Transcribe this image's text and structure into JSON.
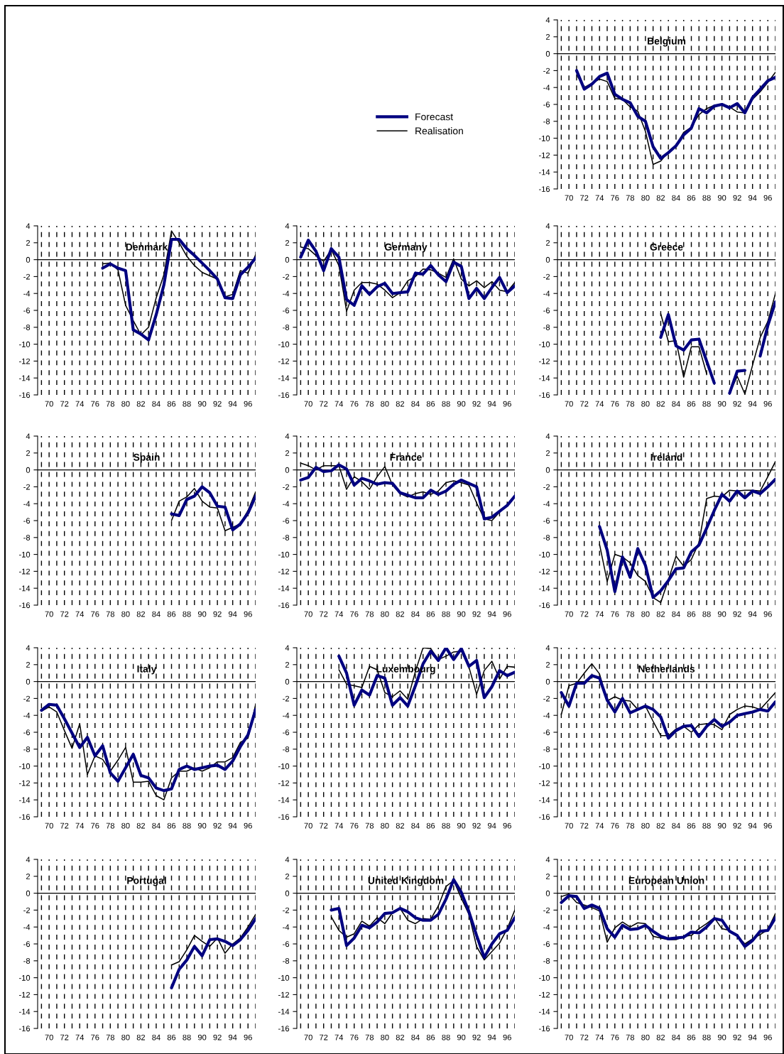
{
  "chart_data": [
    {
      "type": "line",
      "title": "Belgium",
      "legend": "left",
      "grid": "x",
      "xlim": [
        68.5,
        97
      ],
      "ylim": [
        -16,
        4
      ],
      "yticks": [
        -16,
        -14,
        -12,
        -10,
        -8,
        -6,
        -4,
        -2,
        0,
        2,
        4
      ],
      "xticks": [
        {
          "value": 69,
          "label": null
        },
        70,
        {
          "value": 71,
          "label": null
        },
        72,
        {
          "value": 73,
          "label": null
        },
        74,
        {
          "value": 75,
          "label": null
        },
        76,
        {
          "value": 77,
          "label": null
        },
        78,
        {
          "value": 79,
          "label": null
        },
        80,
        {
          "value": 81,
          "label": null
        },
        82,
        {
          "value": 83,
          "label": null
        },
        84,
        {
          "value": 85,
          "label": null
        },
        86,
        {
          "value": 87,
          "label": null
        },
        88,
        {
          "value": 89,
          "label": null
        },
        90,
        {
          "value": 91,
          "label": null
        },
        92,
        {
          "value": 93,
          "label": null
        },
        94,
        {
          "value": 95,
          "label": null
        },
        96,
        {
          "value": 97,
          "label": null
        }
      ],
      "ref_lines": [
        {
          "axis": "y",
          "value": 0,
          "color": "#000000"
        }
      ],
      "x": [
        71,
        72,
        73,
        74,
        75,
        76,
        77,
        78,
        79,
        80,
        81,
        82,
        83,
        84,
        85,
        86,
        87,
        88,
        89,
        90,
        91,
        92,
        93,
        94,
        95,
        96,
        97
      ],
      "series": [
        {
          "name": "Forecast",
          "color": "#000080",
          "values": [
            -2.0,
            -4.2,
            -3.6,
            -2.7,
            -2.3,
            -4.8,
            -5.4,
            -5.8,
            -7.4,
            -8.0,
            -11.0,
            -12.4,
            -11.7,
            -10.9,
            -9.6,
            -8.8,
            -6.5,
            -7.0,
            -6.2,
            -6.0,
            -6.4,
            -5.9,
            -7.0,
            -5.2,
            -4.2,
            -3.2,
            -2.8
          ]
        },
        {
          "name": "Realisation",
          "color": "#000000",
          "values": [
            -2.5,
            -4.0,
            -3.5,
            -3.0,
            -3.3,
            -5.3,
            -5.4,
            -6.3,
            -6.8,
            -9.2,
            -13.1,
            -12.7,
            -11.6,
            -10.8,
            -9.3,
            -8.7,
            -7.2,
            -6.5,
            -6.1,
            -6.0,
            -6.3,
            -6.9,
            -7.0,
            -5.4,
            -4.5,
            -3.4,
            -2.2
          ]
        }
      ]
    },
    {
      "type": "line",
      "title": "Denmark",
      "grid": "x",
      "xlim": [
        68.5,
        97
      ],
      "ylim": [
        -16,
        4
      ],
      "yticks": [
        -16,
        -14,
        -12,
        -10,
        -8,
        -6,
        -4,
        -2,
        0,
        2,
        4
      ],
      "xticks": [
        {
          "value": 69,
          "label": null
        },
        70,
        {
          "value": 71,
          "label": null
        },
        72,
        {
          "value": 73,
          "label": null
        },
        74,
        {
          "value": 75,
          "label": null
        },
        76,
        {
          "value": 77,
          "label": null
        },
        78,
        {
          "value": 79,
          "label": null
        },
        80,
        {
          "value": 81,
          "label": null
        },
        82,
        {
          "value": 83,
          "label": null
        },
        84,
        {
          "value": 85,
          "label": null
        },
        86,
        {
          "value": 87,
          "label": null
        },
        88,
        {
          "value": 89,
          "label": null
        },
        90,
        {
          "value": 91,
          "label": null
        },
        92,
        {
          "value": 93,
          "label": null
        },
        94,
        {
          "value": 95,
          "label": null
        },
        96,
        {
          "value": 97,
          "label": null
        }
      ],
      "ref_lines": [
        {
          "axis": "y",
          "value": 0,
          "color": "#000000"
        }
      ],
      "x": [
        77,
        78,
        79,
        80,
        81,
        82,
        83,
        84,
        85,
        86,
        87,
        88,
        89,
        90,
        91,
        92,
        93,
        94,
        95,
        96,
        97
      ],
      "series": [
        {
          "color": "#000080",
          "values": [
            -1.0,
            -0.5,
            -1.0,
            -1.3,
            -8.3,
            -8.8,
            -9.5,
            -6.5,
            -3.0,
            2.4,
            2.4,
            1.3,
            0.5,
            -0.4,
            -1.3,
            -2.3,
            -4.5,
            -4.6,
            -1.8,
            -0.9,
            0.2
          ]
        },
        {
          "color": "#000000",
          "values": [
            -0.5,
            -0.4,
            -1.2,
            -5.4,
            -7.2,
            -8.9,
            -8.0,
            -4.5,
            -1.8,
            3.4,
            2.0,
            0.4,
            -0.7,
            -1.5,
            -1.9,
            -2.3,
            -4.4,
            -4.1,
            -1.3,
            -1.6,
            0.6
          ]
        }
      ]
    },
    {
      "type": "line",
      "title": "Germany",
      "grid": "x",
      "xlim": [
        68.5,
        97
      ],
      "ylim": [
        -16,
        4
      ],
      "yticks": [
        -16,
        -14,
        -12,
        -10,
        -8,
        -6,
        -4,
        -2,
        0,
        2,
        4
      ],
      "xticks": [
        {
          "value": 69,
          "label": null
        },
        70,
        {
          "value": 71,
          "label": null
        },
        72,
        {
          "value": 73,
          "label": null
        },
        74,
        {
          "value": 75,
          "label": null
        },
        76,
        {
          "value": 77,
          "label": null
        },
        78,
        {
          "value": 79,
          "label": null
        },
        80,
        {
          "value": 81,
          "label": null
        },
        82,
        {
          "value": 83,
          "label": null
        },
        84,
        {
          "value": 85,
          "label": null
        },
        86,
        {
          "value": 87,
          "label": null
        },
        88,
        {
          "value": 89,
          "label": null
        },
        90,
        {
          "value": 91,
          "label": null
        },
        92,
        {
          "value": 93,
          "label": null
        },
        94,
        {
          "value": 95,
          "label": null
        },
        96,
        {
          "value": 97,
          "label": null
        }
      ],
      "ref_lines": [
        {
          "axis": "y",
          "value": 0,
          "color": "#000000"
        }
      ],
      "x": [
        69,
        70,
        71,
        72,
        73,
        74,
        75,
        76,
        77,
        78,
        79,
        80,
        81,
        82,
        83,
        84,
        85,
        86,
        87,
        88,
        89,
        90,
        91,
        92,
        93,
        94,
        95,
        96,
        97
      ],
      "series": [
        {
          "color": "#000080",
          "values": [
            0.3,
            2.3,
            1.0,
            -1.3,
            1.3,
            0.3,
            -4.7,
            -5.4,
            -3.1,
            -4.1,
            -3.2,
            -2.8,
            -4.0,
            -3.9,
            -3.8,
            -1.6,
            -1.7,
            -0.7,
            -1.8,
            -2.6,
            -0.3,
            -0.8,
            -4.6,
            -3.4,
            -4.6,
            -3.3,
            -2.1,
            -3.9,
            -3.1
          ]
        },
        {
          "color": "#000000",
          "values": [
            1.5,
            1.3,
            0.5,
            -0.2,
            1.2,
            -0.7,
            -6.1,
            -3.6,
            -2.7,
            -2.7,
            -2.9,
            -3.6,
            -4.5,
            -3.9,
            -2.5,
            -2.0,
            -1.1,
            -1.2,
            -1.6,
            -2.1,
            0.1,
            -2.3,
            -3.1,
            -2.5,
            -3.3,
            -2.6,
            -3.6,
            -3.8,
            -2.7
          ]
        }
      ]
    },
    {
      "type": "line",
      "title": "Greece",
      "grid": "x",
      "xlim": [
        68.5,
        97
      ],
      "ylim": [
        -16,
        4
      ],
      "yticks": [
        -16,
        -14,
        -12,
        -10,
        -8,
        -6,
        -4,
        -2,
        0,
        2,
        4
      ],
      "xticks": [
        {
          "value": 69,
          "label": null
        },
        70,
        {
          "value": 71,
          "label": null
        },
        72,
        {
          "value": 73,
          "label": null
        },
        74,
        {
          "value": 75,
          "label": null
        },
        76,
        {
          "value": 77,
          "label": null
        },
        78,
        {
          "value": 79,
          "label": null
        },
        80,
        {
          "value": 81,
          "label": null
        },
        82,
        {
          "value": 83,
          "label": null
        },
        84,
        {
          "value": 85,
          "label": null
        },
        86,
        {
          "value": 87,
          "label": null
        },
        88,
        {
          "value": 89,
          "label": null
        },
        90,
        {
          "value": 91,
          "label": null
        },
        92,
        {
          "value": 93,
          "label": null
        },
        94,
        {
          "value": 95,
          "label": null
        },
        96,
        {
          "value": 97,
          "label": null
        }
      ],
      "ref_lines": [
        {
          "axis": "y",
          "value": 0,
          "color": "#000000"
        }
      ],
      "x": [
        82,
        83,
        84,
        85,
        86,
        87,
        88,
        89,
        90,
        91,
        92,
        93,
        94,
        95,
        96,
        97
      ],
      "series": [
        {
          "color": "#000080",
          "values": [
            -9.2,
            -6.5,
            -10.2,
            -10.7,
            -9.5,
            -9.4,
            -12.0,
            -14.6,
            null,
            -15.8,
            -13.2,
            -13.1,
            null,
            -11.4,
            -7.8,
            -5.0
          ]
        },
        {
          "color": "#000000",
          "values": [
            -6.4,
            -9.7,
            -9.6,
            -13.9,
            -10.3,
            -10.3,
            -13.5,
            null,
            null,
            -15.8,
            -13.8,
            -15.9,
            -12.5,
            -9.2,
            -7.3,
            -4.0
          ]
        }
      ]
    },
    {
      "type": "line",
      "title": "Spain",
      "grid": "x",
      "xlim": [
        68.5,
        97
      ],
      "ylim": [
        -16,
        4
      ],
      "yticks": [
        -16,
        -14,
        -12,
        -10,
        -8,
        -6,
        -4,
        -2,
        0,
        2,
        4
      ],
      "xticks": [
        {
          "value": 69,
          "label": null
        },
        70,
        {
          "value": 71,
          "label": null
        },
        72,
        {
          "value": 73,
          "label": null
        },
        74,
        {
          "value": 75,
          "label": null
        },
        76,
        {
          "value": 77,
          "label": null
        },
        78,
        {
          "value": 79,
          "label": null
        },
        80,
        {
          "value": 81,
          "label": null
        },
        82,
        {
          "value": 83,
          "label": null
        },
        84,
        {
          "value": 85,
          "label": null
        },
        86,
        {
          "value": 87,
          "label": null
        },
        88,
        {
          "value": 89,
          "label": null
        },
        90,
        {
          "value": 91,
          "label": null
        },
        92,
        {
          "value": 93,
          "label": null
        },
        94,
        {
          "value": 95,
          "label": null
        },
        96,
        {
          "value": 97,
          "label": null
        }
      ],
      "ref_lines": [
        {
          "axis": "y",
          "value": 0,
          "color": "#000000"
        }
      ],
      "x": [
        86,
        87,
        88,
        89,
        90,
        91,
        92,
        93,
        94,
        95,
        96,
        97
      ],
      "series": [
        {
          "color": "#000080",
          "values": [
            -5.2,
            -5.4,
            -3.5,
            -3.1,
            -2.0,
            -2.7,
            -4.3,
            -4.4,
            -7.1,
            -6.4,
            -5.1,
            -3.1
          ]
        },
        {
          "color": "#000000",
          "values": [
            -6.0,
            -3.7,
            -3.2,
            -2.2,
            -3.7,
            -4.4,
            -4.5,
            -7.2,
            -6.8,
            -6.4,
            -4.8,
            -2.6
          ]
        }
      ]
    },
    {
      "type": "line",
      "title": "France",
      "grid": "x",
      "xlim": [
        68.5,
        97
      ],
      "ylim": [
        -16,
        4
      ],
      "yticks": [
        -16,
        -14,
        -12,
        -10,
        -8,
        -6,
        -4,
        -2,
        0,
        2,
        4
      ],
      "xticks": [
        {
          "value": 69,
          "label": null
        },
        70,
        {
          "value": 71,
          "label": null
        },
        72,
        {
          "value": 73,
          "label": null
        },
        74,
        {
          "value": 75,
          "label": null
        },
        76,
        {
          "value": 77,
          "label": null
        },
        78,
        {
          "value": 79,
          "label": null
        },
        80,
        {
          "value": 81,
          "label": null
        },
        82,
        {
          "value": 83,
          "label": null
        },
        84,
        {
          "value": 85,
          "label": null
        },
        86,
        {
          "value": 87,
          "label": null
        },
        88,
        {
          "value": 89,
          "label": null
        },
        90,
        {
          "value": 91,
          "label": null
        },
        92,
        {
          "value": 93,
          "label": null
        },
        94,
        {
          "value": 95,
          "label": null
        },
        96,
        {
          "value": 97,
          "label": null
        }
      ],
      "ref_lines": [
        {
          "axis": "y",
          "value": 0,
          "color": "#000000"
        }
      ],
      "x": [
        69,
        70,
        71,
        72,
        73,
        74,
        75,
        76,
        77,
        78,
        79,
        80,
        81,
        82,
        83,
        84,
        85,
        86,
        87,
        88,
        89,
        90,
        91,
        92,
        93,
        94,
        95,
        96,
        97
      ],
      "series": [
        {
          "color": "#000080",
          "values": [
            -1.2,
            -0.9,
            0.3,
            -0.2,
            -0.1,
            0.6,
            0.1,
            -1.8,
            -1.0,
            -1.3,
            -1.7,
            -1.5,
            -1.6,
            -2.7,
            -3.0,
            -3.3,
            -3.3,
            -2.4,
            -2.9,
            -2.5,
            -1.7,
            -1.2,
            -1.6,
            -2.0,
            -5.8,
            -5.6,
            -4.9,
            -4.2,
            -3.1
          ]
        },
        {
          "color": "#000000",
          "values": [
            0.8,
            0.5,
            0.0,
            0.5,
            0.5,
            0.5,
            -2.3,
            -0.8,
            -1.4,
            -2.3,
            -0.8,
            0.4,
            -1.8,
            -2.8,
            -3.2,
            -2.8,
            -2.6,
            -2.9,
            -2.5,
            -1.5,
            -1.3,
            -1.5,
            -1.8,
            -3.9,
            -5.8,
            -6.0,
            -5.0,
            -4.1,
            -3.0
          ]
        }
      ]
    },
    {
      "type": "line",
      "title": "Ireland",
      "grid": "x",
      "xlim": [
        68.5,
        97
      ],
      "ylim": [
        -16,
        4
      ],
      "yticks": [
        -16,
        -14,
        -12,
        -10,
        -8,
        -6,
        -4,
        -2,
        0,
        2,
        4
      ],
      "xticks": [
        {
          "value": 69,
          "label": null
        },
        70,
        {
          "value": 71,
          "label": null
        },
        72,
        {
          "value": 73,
          "label": null
        },
        74,
        {
          "value": 75,
          "label": null
        },
        76,
        {
          "value": 77,
          "label": null
        },
        78,
        {
          "value": 79,
          "label": null
        },
        80,
        {
          "value": 81,
          "label": null
        },
        82,
        {
          "value": 83,
          "label": null
        },
        84,
        {
          "value": 85,
          "label": null
        },
        86,
        {
          "value": 87,
          "label": null
        },
        88,
        {
          "value": 89,
          "label": null
        },
        90,
        {
          "value": 91,
          "label": null
        },
        92,
        {
          "value": 93,
          "label": null
        },
        94,
        {
          "value": 95,
          "label": null
        },
        96,
        {
          "value": 97,
          "label": null
        }
      ],
      "ref_lines": [
        {
          "axis": "y",
          "value": 0,
          "color": "#000000"
        }
      ],
      "x": [
        74,
        75,
        76,
        77,
        78,
        79,
        80,
        81,
        82,
        83,
        84,
        85,
        86,
        87,
        88,
        89,
        90,
        91,
        92,
        93,
        94,
        95,
        96,
        97
      ],
      "series": [
        {
          "color": "#000080",
          "values": [
            -6.7,
            -9.5,
            -14.4,
            -10.3,
            -12.7,
            -9.3,
            -11.3,
            -15.1,
            -14.3,
            -13.1,
            -11.7,
            -11.6,
            -9.7,
            -8.9,
            -6.9,
            -4.8,
            -2.9,
            -3.7,
            -2.5,
            -3.3,
            -2.5,
            -2.8,
            -2.0,
            -1.1
          ]
        },
        {
          "color": "#000000",
          "values": [
            -8.8,
            -13.2,
            -10.0,
            -10.3,
            -11.0,
            -12.5,
            -13.2,
            -15.1,
            -15.7,
            -13.0,
            -10.2,
            -11.4,
            -10.6,
            -8.6,
            -3.4,
            -3.1,
            -3.2,
            -2.4,
            -2.5,
            -2.4,
            -2.4,
            -2.5,
            -0.8,
            1.0
          ]
        }
      ]
    },
    {
      "type": "line",
      "title": "Italy",
      "grid": "x",
      "xlim": [
        68.5,
        97
      ],
      "ylim": [
        -16,
        4
      ],
      "yticks": [
        -16,
        -14,
        -12,
        -10,
        -8,
        -6,
        -4,
        -2,
        0,
        2,
        4
      ],
      "xticks": [
        {
          "value": 69,
          "label": null
        },
        70,
        {
          "value": 71,
          "label": null
        },
        72,
        {
          "value": 73,
          "label": null
        },
        74,
        {
          "value": 75,
          "label": null
        },
        76,
        {
          "value": 77,
          "label": null
        },
        78,
        {
          "value": 79,
          "label": null
        },
        80,
        {
          "value": 81,
          "label": null
        },
        82,
        {
          "value": 83,
          "label": null
        },
        84,
        {
          "value": 85,
          "label": null
        },
        86,
        {
          "value": 87,
          "label": null
        },
        88,
        {
          "value": 89,
          "label": null
        },
        90,
        {
          "value": 91,
          "label": null
        },
        92,
        {
          "value": 93,
          "label": null
        },
        94,
        {
          "value": 95,
          "label": null
        },
        96,
        {
          "value": 97,
          "label": null
        }
      ],
      "ref_lines": [
        {
          "axis": "y",
          "value": 0,
          "color": "#000000"
        }
      ],
      "x": [
        69,
        70,
        71,
        72,
        73,
        74,
        75,
        76,
        77,
        78,
        79,
        80,
        81,
        82,
        83,
        84,
        85,
        86,
        87,
        88,
        89,
        90,
        91,
        92,
        93,
        94,
        95,
        96,
        97
      ],
      "series": [
        {
          "color": "#000080",
          "values": [
            -3.4,
            -2.7,
            -2.8,
            -4.4,
            -6.1,
            -7.8,
            -6.6,
            -8.8,
            -7.6,
            -10.8,
            -11.8,
            -10.2,
            -8.6,
            -11.1,
            -11.4,
            -12.6,
            -12.9,
            -12.7,
            -10.4,
            -10.0,
            -10.4,
            -10.2,
            -10.0,
            -9.9,
            -10.4,
            -9.4,
            -7.7,
            -6.3,
            -3.3
          ]
        },
        {
          "color": "#000000",
          "values": [
            -3.5,
            -3.0,
            -3.6,
            -5.8,
            -7.9,
            -5.0,
            -11.0,
            -8.8,
            -9.2,
            -10.6,
            -9.3,
            -7.8,
            -11.9,
            -11.9,
            -11.8,
            -13.5,
            -14.0,
            -11.4,
            -10.6,
            -10.6,
            -10.2,
            -10.6,
            -10.2,
            -9.5,
            -9.5,
            -9.0,
            -7.2,
            -6.7,
            -2.7
          ]
        }
      ]
    },
    {
      "type": "line",
      "title": "Luxembourg",
      "grid": "x",
      "xlim": [
        68.5,
        97
      ],
      "ylim": [
        -16,
        4
      ],
      "yticks": [
        -16,
        -14,
        -12,
        -10,
        -8,
        -6,
        -4,
        -2,
        0,
        2,
        4
      ],
      "xticks": [
        {
          "value": 69,
          "label": null
        },
        70,
        {
          "value": 71,
          "label": null
        },
        72,
        {
          "value": 73,
          "label": null
        },
        74,
        {
          "value": 75,
          "label": null
        },
        76,
        {
          "value": 77,
          "label": null
        },
        78,
        {
          "value": 79,
          "label": null
        },
        80,
        {
          "value": 81,
          "label": null
        },
        82,
        {
          "value": 83,
          "label": null
        },
        84,
        {
          "value": 85,
          "label": null
        },
        86,
        {
          "value": 87,
          "label": null
        },
        88,
        {
          "value": 89,
          "label": null
        },
        90,
        {
          "value": 91,
          "label": null
        },
        92,
        {
          "value": 93,
          "label": null
        },
        94,
        {
          "value": 95,
          "label": null
        },
        96,
        {
          "value": 97,
          "label": null
        }
      ],
      "ref_lines": [
        {
          "axis": "y",
          "value": 0,
          "color": "#000000"
        }
      ],
      "x": [
        74,
        75,
        76,
        77,
        78,
        79,
        80,
        81,
        82,
        83,
        84,
        85,
        86,
        87,
        88,
        89,
        90,
        91,
        92,
        93,
        94,
        95,
        96,
        97
      ],
      "series": [
        {
          "color": "#000080",
          "values": [
            3.0,
            1.0,
            -2.8,
            -1.0,
            -1.6,
            0.7,
            0.4,
            -2.8,
            -1.9,
            -2.9,
            -0.5,
            2.1,
            3.6,
            2.5,
            4.0,
            2.6,
            3.9,
            1.8,
            2.5,
            -1.9,
            -0.6,
            1.3,
            0.7,
            1.1
          ]
        },
        {
          "color": "#000000",
          "values": [
            1.4,
            -0.3,
            -0.5,
            -0.7,
            1.8,
            1.4,
            -1.3,
            -1.8,
            -1.1,
            -2.1,
            1.2,
            4.0,
            3.9,
            2.6,
            3.0,
            3.5,
            3.6,
            1.7,
            -1.5,
            1.3,
            2.4,
            0.3,
            1.8,
            1.7
          ]
        }
      ]
    },
    {
      "type": "line",
      "title": "Netherlands",
      "grid": "x",
      "xlim": [
        68.5,
        97
      ],
      "ylim": [
        -16,
        4
      ],
      "yticks": [
        -16,
        -14,
        -12,
        -10,
        -8,
        -6,
        -4,
        -2,
        0,
        2,
        4
      ],
      "xticks": [
        {
          "value": 69,
          "label": null
        },
        70,
        {
          "value": 71,
          "label": null
        },
        72,
        {
          "value": 73,
          "label": null
        },
        74,
        {
          "value": 75,
          "label": null
        },
        76,
        {
          "value": 77,
          "label": null
        },
        78,
        {
          "value": 79,
          "label": null
        },
        80,
        {
          "value": 81,
          "label": null
        },
        82,
        {
          "value": 83,
          "label": null
        },
        84,
        {
          "value": 85,
          "label": null
        },
        86,
        {
          "value": 87,
          "label": null
        },
        88,
        {
          "value": 89,
          "label": null
        },
        90,
        {
          "value": 91,
          "label": null
        },
        92,
        {
          "value": 93,
          "label": null
        },
        94,
        {
          "value": 95,
          "label": null
        },
        96,
        {
          "value": 97,
          "label": null
        }
      ],
      "ref_lines": [
        {
          "axis": "y",
          "value": 0,
          "color": "#000000"
        }
      ],
      "x": [
        69,
        70,
        71,
        72,
        73,
        74,
        75,
        76,
        77,
        78,
        79,
        80,
        81,
        82,
        83,
        84,
        85,
        86,
        87,
        88,
        89,
        90,
        91,
        92,
        93,
        94,
        95,
        96,
        97
      ],
      "series": [
        {
          "color": "#000080",
          "values": [
            -1.3,
            -2.9,
            -0.2,
            -0.2,
            0.7,
            0.4,
            -2.2,
            -3.6,
            -2.0,
            -3.7,
            -3.3,
            -2.9,
            -3.3,
            -4.2,
            -6.7,
            -5.8,
            -5.3,
            -5.2,
            -6.5,
            -5.3,
            -4.5,
            -5.3,
            -4.8,
            -4.0,
            -3.8,
            -3.6,
            -3.3,
            -3.5,
            -2.4
          ]
        },
        {
          "color": "#000000",
          "values": [
            -3.9,
            -0.5,
            -0.2,
            1.0,
            2.1,
            0.9,
            -2.3,
            -1.8,
            -2.2,
            -2.3,
            -3.3,
            -2.9,
            -4.7,
            -6.4,
            -6.4,
            -5.6,
            -5.3,
            -6.0,
            -5.1,
            -5.0,
            -5.1,
            -5.7,
            -3.9,
            -3.3,
            -2.9,
            -3.0,
            -3.3,
            -2.3,
            -1.3
          ]
        }
      ]
    },
    {
      "type": "line",
      "title": "Portugal",
      "grid": "x",
      "xlim": [
        68.5,
        97
      ],
      "ylim": [
        -16,
        4
      ],
      "yticks": [
        -16,
        -14,
        -12,
        -10,
        -8,
        -6,
        -4,
        -2,
        0,
        2,
        4
      ],
      "xticks": [
        {
          "value": 69,
          "label": null
        },
        70,
        {
          "value": 71,
          "label": null
        },
        72,
        {
          "value": 73,
          "label": null
        },
        74,
        {
          "value": 75,
          "label": null
        },
        76,
        {
          "value": 77,
          "label": null
        },
        78,
        {
          "value": 79,
          "label": null
        },
        80,
        {
          "value": 81,
          "label": null
        },
        82,
        {
          "value": 83,
          "label": null
        },
        84,
        {
          "value": 85,
          "label": null
        },
        86,
        {
          "value": 87,
          "label": null
        },
        88,
        {
          "value": 89,
          "label": null
        },
        90,
        {
          "value": 91,
          "label": null
        },
        92,
        {
          "value": 93,
          "label": null
        },
        94,
        {
          "value": 95,
          "label": null
        },
        96,
        {
          "value": 97,
          "label": null
        }
      ],
      "ref_lines": [
        {
          "axis": "y",
          "value": 0,
          "color": "#000000"
        }
      ],
      "x": [
        86,
        87,
        88,
        89,
        90,
        91,
        92,
        93,
        94,
        95,
        96,
        97
      ],
      "series": [
        {
          "color": "#000080",
          "values": [
            -11.2,
            -9.0,
            -7.9,
            -6.3,
            -7.4,
            -5.5,
            -5.4,
            -5.7,
            -6.2,
            -5.5,
            -4.4,
            -3.0
          ]
        },
        {
          "color": "#000000",
          "values": [
            -8.5,
            -8.1,
            -6.7,
            -5.0,
            -5.7,
            -6.3,
            -5.3,
            -7.1,
            -6.0,
            -5.3,
            -4.0,
            -2.5
          ]
        }
      ]
    },
    {
      "type": "line",
      "title": "United Kingdom",
      "grid": "x",
      "xlim": [
        68.5,
        97
      ],
      "ylim": [
        -16,
        4
      ],
      "yticks": [
        -16,
        -14,
        -12,
        -10,
        -8,
        -6,
        -4,
        -2,
        0,
        2,
        4
      ],
      "xticks": [
        {
          "value": 69,
          "label": null
        },
        70,
        {
          "value": 71,
          "label": null
        },
        72,
        {
          "value": 73,
          "label": null
        },
        74,
        {
          "value": 75,
          "label": null
        },
        76,
        {
          "value": 77,
          "label": null
        },
        78,
        {
          "value": 79,
          "label": null
        },
        80,
        {
          "value": 81,
          "label": null
        },
        82,
        {
          "value": 83,
          "label": null
        },
        84,
        {
          "value": 85,
          "label": null
        },
        86,
        {
          "value": 87,
          "label": null
        },
        88,
        {
          "value": 89,
          "label": null
        },
        90,
        {
          "value": 91,
          "label": null
        },
        92,
        {
          "value": 93,
          "label": null
        },
        94,
        {
          "value": 95,
          "label": null
        },
        96,
        {
          "value": 97,
          "label": null
        }
      ],
      "ref_lines": [
        {
          "axis": "y",
          "value": 0,
          "color": "#000000"
        }
      ],
      "x": [
        73,
        74,
        75,
        76,
        77,
        78,
        79,
        80,
        81,
        82,
        83,
        84,
        85,
        86,
        87,
        88,
        89,
        90,
        91,
        92,
        93,
        94,
        95,
        96,
        97
      ],
      "series": [
        {
          "color": "#000080",
          "values": [
            -2.0,
            -1.8,
            -6.2,
            -5.3,
            -3.8,
            -4.1,
            -3.4,
            -2.4,
            -2.3,
            -1.8,
            -2.2,
            -2.9,
            -3.2,
            -3.2,
            -2.5,
            -0.7,
            1.6,
            0.1,
            -2.2,
            -5.0,
            -7.6,
            -6.0,
            -4.8,
            -4.4,
            -2.9
          ]
        },
        {
          "color": "#000000",
          "values": [
            -2.8,
            -4.4,
            -5.2,
            -4.8,
            -3.3,
            -3.9,
            -2.9,
            -3.6,
            -2.3,
            -1.8,
            -3.2,
            -3.6,
            -3.0,
            -3.1,
            -1.5,
            0.8,
            1.5,
            -0.6,
            -2.5,
            -6.3,
            -7.9,
            -6.9,
            -5.9,
            -4.2,
            -2.0
          ]
        }
      ]
    },
    {
      "type": "line",
      "title": "European Union",
      "grid": "x",
      "xlim": [
        68.5,
        97
      ],
      "ylim": [
        -16,
        4
      ],
      "yticks": [
        -16,
        -14,
        -12,
        -10,
        -8,
        -6,
        -4,
        -2,
        0,
        2,
        4
      ],
      "xticks": [
        {
          "value": 69,
          "label": null
        },
        70,
        {
          "value": 71,
          "label": null
        },
        72,
        {
          "value": 73,
          "label": null
        },
        74,
        {
          "value": 75,
          "label": null
        },
        76,
        {
          "value": 77,
          "label": null
        },
        78,
        {
          "value": 79,
          "label": null
        },
        80,
        {
          "value": 81,
          "label": null
        },
        82,
        {
          "value": 83,
          "label": null
        },
        84,
        {
          "value": 85,
          "label": null
        },
        86,
        {
          "value": 87,
          "label": null
        },
        88,
        {
          "value": 89,
          "label": null
        },
        90,
        {
          "value": 91,
          "label": null
        },
        92,
        {
          "value": 93,
          "label": null
        },
        94,
        {
          "value": 95,
          "label": null
        },
        96,
        {
          "value": 97,
          "label": null
        }
      ],
      "ref_lines": [
        {
          "axis": "y",
          "value": 0,
          "color": "#000000"
        }
      ],
      "x": [
        69,
        70,
        71,
        72,
        73,
        74,
        75,
        76,
        77,
        78,
        79,
        80,
        81,
        82,
        83,
        84,
        85,
        86,
        87,
        88,
        89,
        90,
        91,
        92,
        93,
        94,
        95,
        96,
        97
      ],
      "series": [
        {
          "color": "#000080",
          "values": [
            -1.1,
            -0.3,
            -0.4,
            -1.8,
            -1.4,
            -1.8,
            -4.2,
            -5.2,
            -3.8,
            -4.3,
            -4.2,
            -3.8,
            -4.5,
            -5.1,
            -5.4,
            -5.3,
            -5.2,
            -4.6,
            -4.7,
            -4.0,
            -3.0,
            -3.2,
            -4.5,
            -5.0,
            -6.3,
            -5.6,
            -4.5,
            -4.4,
            -2.9
          ]
        },
        {
          "color": "#000000",
          "values": [
            -0.4,
            -0.1,
            -1.1,
            -1.4,
            -1.7,
            -2.1,
            -5.8,
            -4.1,
            -3.4,
            -4.0,
            -3.5,
            -3.6,
            -5.1,
            -5.3,
            -5.5,
            -5.5,
            -5.1,
            -5.0,
            -4.2,
            -3.6,
            -2.9,
            -4.2,
            -4.4,
            -5.0,
            -6.0,
            -5.4,
            -4.9,
            -4.3,
            -2.4
          ]
        }
      ]
    }
  ]
}
